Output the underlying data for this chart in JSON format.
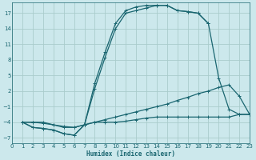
{
  "bg_color": "#cce8ec",
  "grid_color": "#aacccc",
  "line_color": "#1a6670",
  "xlabel": "Humidex (Indice chaleur)",
  "xlim": [
    0,
    23
  ],
  "ylim": [
    -8,
    19
  ],
  "yticks": [
    -7,
    -4,
    -1,
    2,
    5,
    8,
    11,
    14,
    17
  ],
  "xticks": [
    0,
    1,
    2,
    3,
    4,
    5,
    6,
    7,
    8,
    9,
    10,
    11,
    12,
    13,
    14,
    15,
    16,
    17,
    18,
    19,
    20,
    21,
    22,
    23
  ],
  "curve1_x": [
    1,
    2,
    3,
    4,
    5,
    6,
    7,
    8,
    9,
    10,
    11,
    12,
    13,
    14,
    15,
    16,
    17,
    18,
    19,
    20,
    21,
    22,
    23
  ],
  "curve1_y": [
    -4,
    -5,
    -5.2,
    -5.5,
    -6.2,
    -6.5,
    -4.5,
    3.5,
    9.5,
    15,
    17.5,
    18.2,
    18.5,
    18.5,
    18.5,
    17.5,
    17.3,
    17,
    15,
    4.5,
    -1.5,
    -2.5,
    -2.5
  ],
  "curve2_x": [
    1,
    2,
    3,
    4,
    5,
    6,
    7,
    8,
    9,
    10,
    11,
    12,
    13,
    14,
    15,
    16,
    17,
    18,
    19
  ],
  "curve2_y": [
    -4,
    -5,
    -5.2,
    -5.5,
    -6.2,
    -6.5,
    -4.5,
    2.5,
    8.5,
    14,
    17,
    17.5,
    18,
    18.5,
    18.5,
    17.5,
    17.3,
    17,
    15
  ],
  "curve3_x": [
    1,
    2,
    3,
    4,
    5,
    6,
    7,
    8,
    9,
    10,
    11,
    12,
    13,
    14,
    15,
    16,
    17,
    18,
    19,
    20,
    21,
    22,
    23
  ],
  "curve3_y": [
    -4,
    -4,
    -4,
    -4.5,
    -5,
    -5,
    -4.5,
    -4,
    -3.5,
    -3,
    -2.5,
    -2,
    -1.5,
    -1,
    -0.5,
    0.2,
    0.8,
    1.5,
    2,
    2.7,
    3.2,
    1,
    -2.5
  ],
  "curve4_x": [
    1,
    2,
    3,
    4,
    5,
    6,
    7,
    8,
    9,
    10,
    11,
    12,
    13,
    14,
    15,
    16,
    17,
    18,
    19,
    20,
    21,
    22,
    23
  ],
  "curve4_y": [
    -4,
    -4,
    -4.2,
    -4.5,
    -4.8,
    -5,
    -4.5,
    -4,
    -4,
    -4,
    -3.8,
    -3.5,
    -3.2,
    -3,
    -3,
    -3,
    -3,
    -3,
    -3,
    -3,
    -3,
    -2.5,
    -2.5
  ]
}
